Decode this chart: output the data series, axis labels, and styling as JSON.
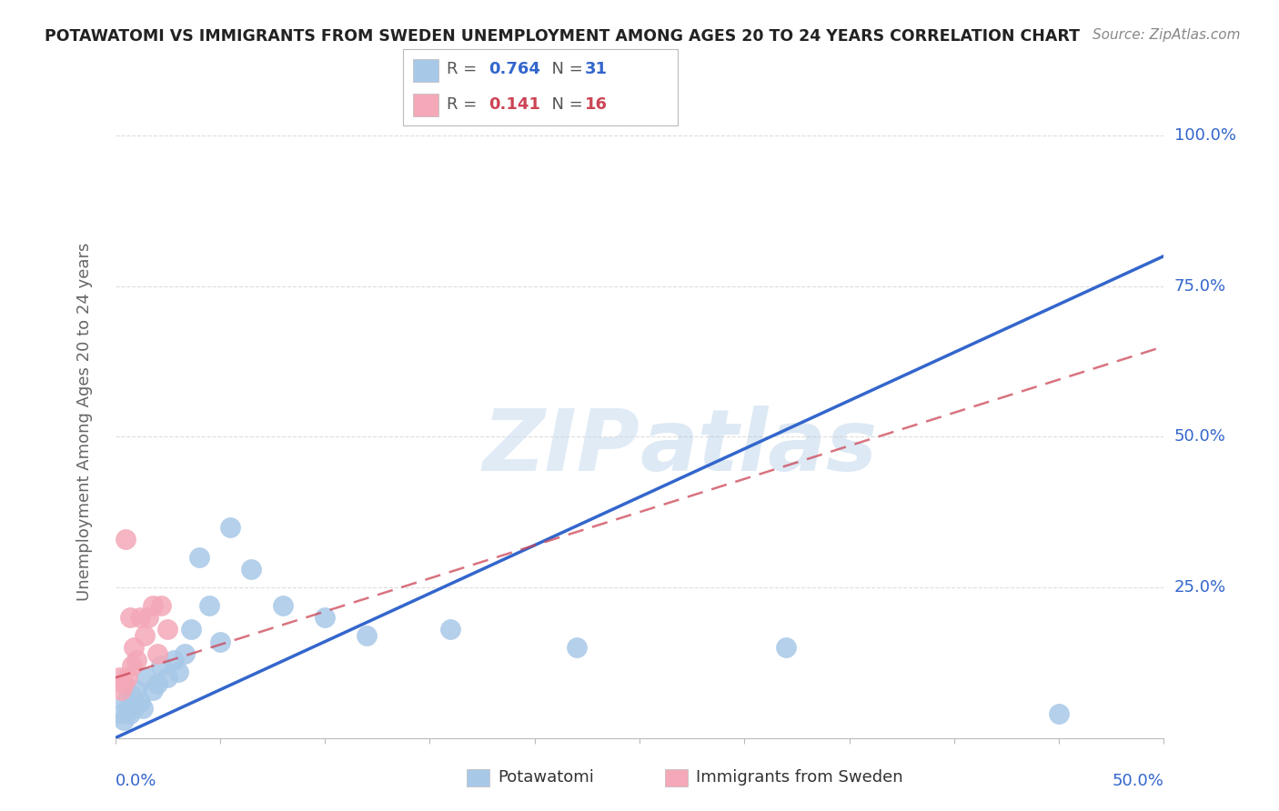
{
  "title": "POTAWATOMI VS IMMIGRANTS FROM SWEDEN UNEMPLOYMENT AMONG AGES 20 TO 24 YEARS CORRELATION CHART",
  "source": "Source: ZipAtlas.com",
  "ylabel": "Unemployment Among Ages 20 to 24 years",
  "xlim": [
    0,
    0.5
  ],
  "ylim": [
    0,
    1.05
  ],
  "watermark": "ZIPatlas",
  "blue_color": "#A8C8E8",
  "pink_color": "#F4A8B8",
  "trend_blue": "#3366CC",
  "trend_pink": "#CC4455",
  "grid_color": "#DDDDDD",
  "R1": "0.764",
  "N1": "31",
  "R2": "0.141",
  "N2": "16",
  "potawatomi_x": [
    0.003,
    0.004,
    0.005,
    0.006,
    0.007,
    0.008,
    0.009,
    0.01,
    0.012,
    0.013,
    0.015,
    0.018,
    0.02,
    0.022,
    0.025,
    0.028,
    0.03,
    0.033,
    0.036,
    0.04,
    0.045,
    0.05,
    0.055,
    0.065,
    0.08,
    0.1,
    0.12,
    0.16,
    0.22,
    0.32,
    0.45
  ],
  "potawatomi_y": [
    0.04,
    0.03,
    0.06,
    0.05,
    0.04,
    0.07,
    0.05,
    0.08,
    0.06,
    0.05,
    0.1,
    0.08,
    0.09,
    0.12,
    0.1,
    0.13,
    0.11,
    0.14,
    0.18,
    0.3,
    0.22,
    0.16,
    0.35,
    0.28,
    0.22,
    0.2,
    0.17,
    0.18,
    0.15,
    0.15,
    0.04
  ],
  "sweden_x": [
    0.002,
    0.003,
    0.004,
    0.005,
    0.006,
    0.007,
    0.008,
    0.009,
    0.01,
    0.012,
    0.014,
    0.016,
    0.018,
    0.02,
    0.022,
    0.025
  ],
  "sweden_y": [
    0.1,
    0.08,
    0.09,
    0.33,
    0.1,
    0.2,
    0.12,
    0.15,
    0.13,
    0.2,
    0.17,
    0.2,
    0.22,
    0.14,
    0.22,
    0.18
  ],
  "blue_trend_x0": 0.0,
  "blue_trend_y0": 0.0,
  "blue_trend_x1": 0.5,
  "blue_trend_y1": 0.8,
  "pink_trend_x0": 0.0,
  "pink_trend_y0": 0.1,
  "pink_trend_x1": 0.5,
  "pink_trend_y1": 0.65
}
